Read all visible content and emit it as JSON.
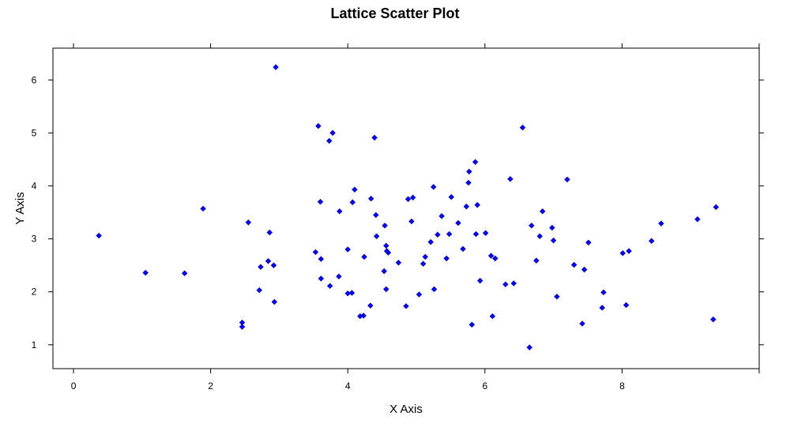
{
  "chart_data": {
    "type": "scatter",
    "title": "Lattice Scatter Plot",
    "xlabel": "X Axis",
    "ylabel": "Y Axis",
    "xlim": [
      -0.3,
      10.0
    ],
    "ylim": [
      0.55,
      6.6
    ],
    "x_ticks": [
      0,
      2,
      4,
      6,
      8
    ],
    "y_ticks": [
      1,
      2,
      3,
      4,
      5,
      6
    ],
    "grid": false,
    "legend": "none",
    "point_color": "#0000ff",
    "series": [
      {
        "points": [
          [
            0.37,
            3.06
          ],
          [
            1.05,
            2.36
          ],
          [
            1.62,
            2.35
          ],
          [
            1.89,
            3.57
          ],
          [
            2.46,
            1.42
          ],
          [
            2.46,
            1.34
          ],
          [
            2.55,
            3.31
          ],
          [
            2.71,
            2.03
          ],
          [
            2.73,
            2.47
          ],
          [
            2.84,
            2.58
          ],
          [
            2.86,
            3.12
          ],
          [
            2.92,
            2.5
          ],
          [
            2.93,
            1.81
          ],
          [
            2.95,
            6.24
          ],
          [
            3.53,
            2.75
          ],
          [
            3.57,
            5.13
          ],
          [
            3.6,
            3.7
          ],
          [
            3.61,
            2.62
          ],
          [
            3.61,
            2.25
          ],
          [
            3.73,
            4.85
          ],
          [
            3.74,
            2.11
          ],
          [
            3.78,
            5.0
          ],
          [
            3.87,
            2.29
          ],
          [
            3.88,
            3.52
          ],
          [
            4.0,
            2.8
          ],
          [
            4.0,
            1.97
          ],
          [
            4.06,
            1.98
          ],
          [
            4.07,
            3.69
          ],
          [
            4.1,
            3.93
          ],
          [
            4.18,
            1.54
          ],
          [
            4.23,
            1.55
          ],
          [
            4.24,
            2.66
          ],
          [
            4.33,
            1.74
          ],
          [
            4.34,
            3.76
          ],
          [
            4.39,
            4.91
          ],
          [
            4.41,
            3.45
          ],
          [
            4.42,
            3.05
          ],
          [
            4.53,
            2.39
          ],
          [
            4.54,
            3.25
          ],
          [
            4.56,
            2.87
          ],
          [
            4.56,
            2.05
          ],
          [
            4.57,
            2.77
          ],
          [
            4.59,
            2.74
          ],
          [
            4.74,
            2.55
          ],
          [
            4.85,
            1.73
          ],
          [
            4.88,
            3.75
          ],
          [
            4.93,
            3.33
          ],
          [
            4.95,
            3.78
          ],
          [
            5.04,
            1.95
          ],
          [
            5.1,
            2.53
          ],
          [
            5.13,
            2.66
          ],
          [
            5.21,
            2.94
          ],
          [
            5.25,
            3.98
          ],
          [
            5.26,
            2.05
          ],
          [
            5.31,
            3.08
          ],
          [
            5.37,
            3.43
          ],
          [
            5.44,
            2.63
          ],
          [
            5.48,
            3.09
          ],
          [
            5.51,
            3.79
          ],
          [
            5.61,
            3.3
          ],
          [
            5.68,
            2.81
          ],
          [
            5.73,
            3.61
          ],
          [
            5.76,
            4.06
          ],
          [
            5.77,
            4.27
          ],
          [
            5.81,
            1.38
          ],
          [
            5.86,
            4.45
          ],
          [
            5.87,
            3.09
          ],
          [
            5.89,
            3.64
          ],
          [
            5.93,
            2.21
          ],
          [
            6.01,
            3.11
          ],
          [
            6.09,
            2.68
          ],
          [
            6.11,
            1.54
          ],
          [
            6.15,
            2.63
          ],
          [
            6.3,
            2.14
          ],
          [
            6.37,
            4.13
          ],
          [
            6.42,
            2.16
          ],
          [
            6.55,
            5.1
          ],
          [
            6.65,
            0.95
          ],
          [
            6.68,
            3.25
          ],
          [
            6.75,
            2.59
          ],
          [
            6.8,
            3.05
          ],
          [
            6.84,
            3.52
          ],
          [
            6.98,
            3.21
          ],
          [
            7.0,
            2.97
          ],
          [
            7.05,
            1.91
          ],
          [
            7.2,
            4.12
          ],
          [
            7.3,
            2.51
          ],
          [
            7.42,
            1.4
          ],
          [
            7.45,
            2.42
          ],
          [
            7.51,
            2.93
          ],
          [
            7.71,
            1.7
          ],
          [
            7.73,
            1.99
          ],
          [
            8.01,
            2.73
          ],
          [
            8.06,
            1.75
          ],
          [
            8.1,
            2.77
          ],
          [
            8.43,
            2.96
          ],
          [
            8.57,
            3.29
          ],
          [
            9.1,
            3.37
          ],
          [
            9.33,
            1.48
          ],
          [
            9.37,
            3.6
          ]
        ]
      }
    ]
  }
}
